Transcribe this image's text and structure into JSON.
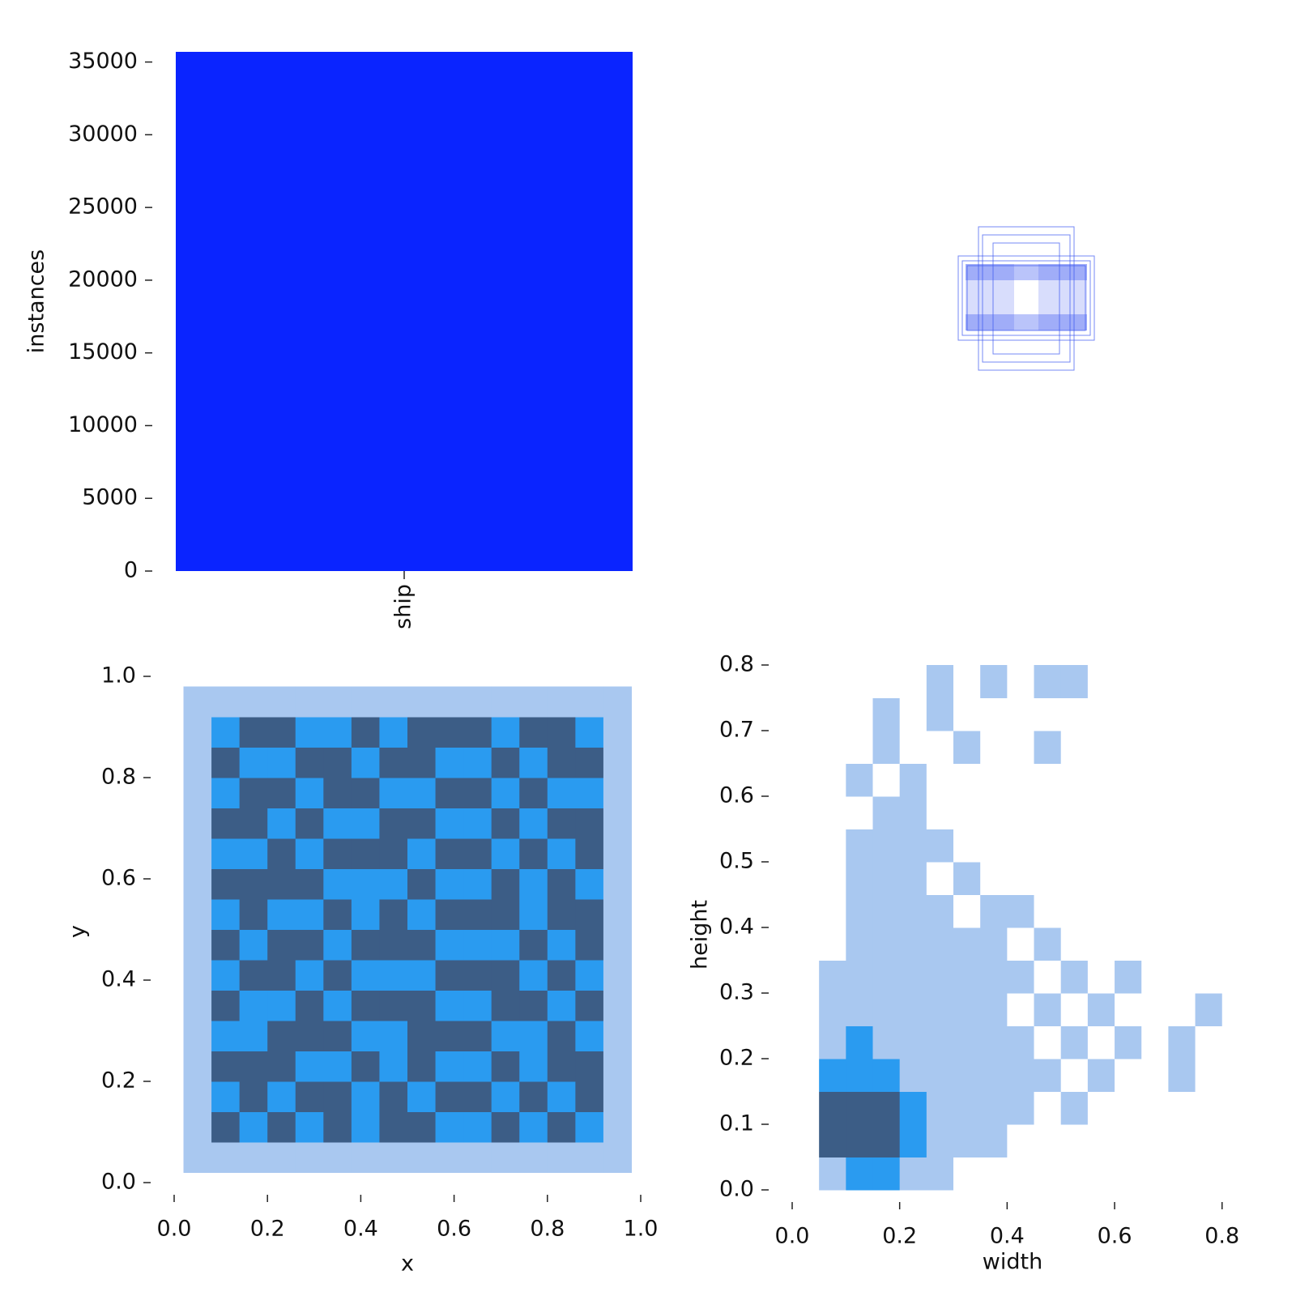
{
  "chart_data": [
    {
      "type": "bar",
      "categories": [
        "ship"
      ],
      "values": [
        35700
      ],
      "color": "#0a24ff",
      "ylabel": "instances",
      "ylim": [
        0,
        35700
      ],
      "yticks": [
        0,
        5000,
        10000,
        15000,
        20000,
        25000,
        30000,
        35000
      ]
    },
    {
      "type": "heatmap",
      "xlabel": "x",
      "ylabel": "y",
      "colors": [
        "#ffffff",
        "#a9c8f0",
        "#2a9bf0",
        "#3c5d86"
      ],
      "xlim": [
        0,
        1
      ],
      "ylim": [
        0,
        1
      ],
      "xticks": [
        {
          "value": 0,
          "label": "0.0"
        },
        0.2,
        0.4,
        0.6,
        0.8,
        {
          "value": 1,
          "label": "1.0"
        }
      ],
      "yticks": [
        {
          "value": 0,
          "label": "0.0"
        },
        0.2,
        0.4,
        0.6,
        0.8,
        {
          "value": 1,
          "label": "1.0"
        }
      ],
      "xbins": [
        0.02,
        0.08,
        0.14,
        0.2,
        0.26,
        0.32,
        0.38,
        0.44,
        0.5,
        0.56,
        0.62,
        0.68,
        0.74,
        0.8,
        0.86,
        0.92,
        0.98
      ],
      "ybins": [
        0.02,
        0.08,
        0.14,
        0.2,
        0.26,
        0.32,
        0.38,
        0.44,
        0.5,
        0.56,
        0.62,
        0.68,
        0.74,
        0.8,
        0.86,
        0.92,
        0.98
      ],
      "values": [
        [
          1,
          1,
          1,
          1,
          1,
          1,
          1,
          1,
          1,
          1,
          1,
          1,
          1,
          1,
          1,
          1
        ],
        [
          1,
          3,
          2,
          3,
          2,
          3,
          2,
          3,
          3,
          2,
          2,
          3,
          2,
          3,
          2,
          1
        ],
        [
          1,
          2,
          3,
          2,
          3,
          3,
          2,
          3,
          2,
          3,
          3,
          2,
          3,
          2,
          3,
          1
        ],
        [
          1,
          3,
          3,
          3,
          2,
          2,
          3,
          2,
          3,
          2,
          2,
          3,
          2,
          3,
          3,
          1
        ],
        [
          1,
          2,
          2,
          3,
          3,
          3,
          2,
          2,
          3,
          3,
          3,
          2,
          2,
          3,
          2,
          1
        ],
        [
          1,
          3,
          2,
          2,
          3,
          2,
          3,
          3,
          3,
          2,
          2,
          3,
          3,
          2,
          3,
          1
        ],
        [
          1,
          2,
          3,
          3,
          2,
          3,
          2,
          2,
          2,
          3,
          3,
          3,
          2,
          3,
          2,
          1
        ],
        [
          1,
          3,
          2,
          3,
          3,
          2,
          3,
          3,
          3,
          2,
          2,
          2,
          3,
          2,
          3,
          1
        ],
        [
          1,
          2,
          3,
          2,
          2,
          3,
          2,
          3,
          2,
          3,
          3,
          3,
          2,
          3,
          3,
          1
        ],
        [
          1,
          3,
          3,
          3,
          3,
          2,
          2,
          2,
          3,
          2,
          2,
          3,
          2,
          3,
          2,
          1
        ],
        [
          1,
          2,
          2,
          3,
          2,
          3,
          3,
          3,
          2,
          3,
          3,
          2,
          3,
          2,
          3,
          1
        ],
        [
          1,
          3,
          3,
          2,
          3,
          2,
          2,
          3,
          3,
          2,
          2,
          3,
          2,
          3,
          3,
          1
        ],
        [
          1,
          2,
          3,
          3,
          2,
          3,
          3,
          2,
          2,
          3,
          3,
          2,
          3,
          2,
          2,
          1
        ],
        [
          1,
          3,
          2,
          2,
          3,
          3,
          2,
          3,
          3,
          2,
          2,
          3,
          2,
          3,
          3,
          1
        ],
        [
          1,
          2,
          3,
          3,
          2,
          2,
          3,
          2,
          3,
          3,
          3,
          2,
          3,
          3,
          2,
          1
        ],
        [
          1,
          1,
          1,
          1,
          1,
          1,
          1,
          1,
          1,
          1,
          1,
          1,
          1,
          1,
          1,
          1
        ]
      ]
    },
    {
      "type": "heatmap",
      "xlabel": "width",
      "ylabel": "height",
      "colors": [
        "#ffffff",
        "#a9c8f0",
        "#2a9bf0",
        "#3c5d86"
      ],
      "xlim": [
        0,
        0.82
      ],
      "ylim": [
        0,
        0.8
      ],
      "xticks": [
        {
          "value": 0,
          "label": "0.0"
        },
        0.2,
        0.4,
        0.6,
        0.8
      ],
      "yticks": [
        {
          "value": 0,
          "label": "0.0"
        },
        0.1,
        0.2,
        0.3,
        0.4,
        0.5,
        0.6,
        0.7,
        0.8
      ],
      "xbins": [
        0,
        0.05,
        0.1,
        0.15,
        0.2,
        0.25,
        0.3,
        0.35,
        0.4,
        0.45,
        0.5,
        0.55,
        0.6,
        0.65,
        0.7,
        0.75,
        0.8,
        0.85
      ],
      "ybins": [
        0,
        0.05,
        0.1,
        0.15,
        0.2,
        0.25,
        0.3,
        0.35,
        0.4,
        0.45,
        0.5,
        0.55,
        0.6,
        0.65,
        0.7,
        0.75,
        0.8
      ],
      "values": [
        [
          0,
          1,
          2,
          2,
          1,
          1,
          0,
          0,
          0,
          0,
          0,
          0,
          0,
          0,
          0,
          0,
          0
        ],
        [
          0,
          3,
          3,
          3,
          2,
          1,
          1,
          1,
          0,
          0,
          0,
          0,
          0,
          0,
          0,
          0,
          0
        ],
        [
          0,
          3,
          3,
          3,
          2,
          1,
          1,
          1,
          1,
          0,
          1,
          0,
          0,
          0,
          0,
          0,
          0
        ],
        [
          0,
          2,
          2,
          2,
          1,
          1,
          1,
          1,
          1,
          1,
          0,
          1,
          0,
          0,
          1,
          0,
          0
        ],
        [
          0,
          1,
          2,
          1,
          1,
          1,
          1,
          1,
          1,
          0,
          1,
          0,
          1,
          0,
          1,
          0,
          0
        ],
        [
          0,
          1,
          1,
          1,
          1,
          1,
          1,
          1,
          0,
          1,
          0,
          1,
          0,
          0,
          0,
          1,
          0
        ],
        [
          0,
          1,
          1,
          1,
          1,
          1,
          1,
          1,
          1,
          0,
          1,
          0,
          1,
          0,
          0,
          0,
          0
        ],
        [
          0,
          0,
          1,
          1,
          1,
          1,
          1,
          1,
          0,
          1,
          0,
          0,
          0,
          0,
          0,
          0,
          0
        ],
        [
          0,
          0,
          1,
          1,
          1,
          1,
          0,
          1,
          1,
          0,
          0,
          0,
          0,
          0,
          0,
          0,
          0
        ],
        [
          0,
          0,
          1,
          1,
          1,
          0,
          1,
          0,
          0,
          0,
          0,
          0,
          0,
          0,
          0,
          0,
          0
        ],
        [
          0,
          0,
          1,
          1,
          1,
          1,
          0,
          0,
          0,
          0,
          0,
          0,
          0,
          0,
          0,
          0,
          0
        ],
        [
          0,
          0,
          0,
          1,
          1,
          0,
          0,
          0,
          0,
          0,
          0,
          0,
          0,
          0,
          0,
          0,
          0
        ],
        [
          0,
          0,
          1,
          0,
          1,
          0,
          0,
          0,
          0,
          0,
          0,
          0,
          0,
          0,
          0,
          0,
          0
        ],
        [
          0,
          0,
          0,
          1,
          0,
          0,
          1,
          0,
          0,
          1,
          0,
          0,
          0,
          0,
          0,
          0,
          0
        ],
        [
          0,
          0,
          0,
          1,
          0,
          1,
          0,
          0,
          0,
          0,
          0,
          0,
          0,
          0,
          0,
          0,
          0
        ],
        [
          0,
          0,
          0,
          0,
          0,
          1,
          0,
          1,
          0,
          1,
          1,
          0,
          0,
          0,
          0,
          0,
          0
        ]
      ]
    }
  ]
}
